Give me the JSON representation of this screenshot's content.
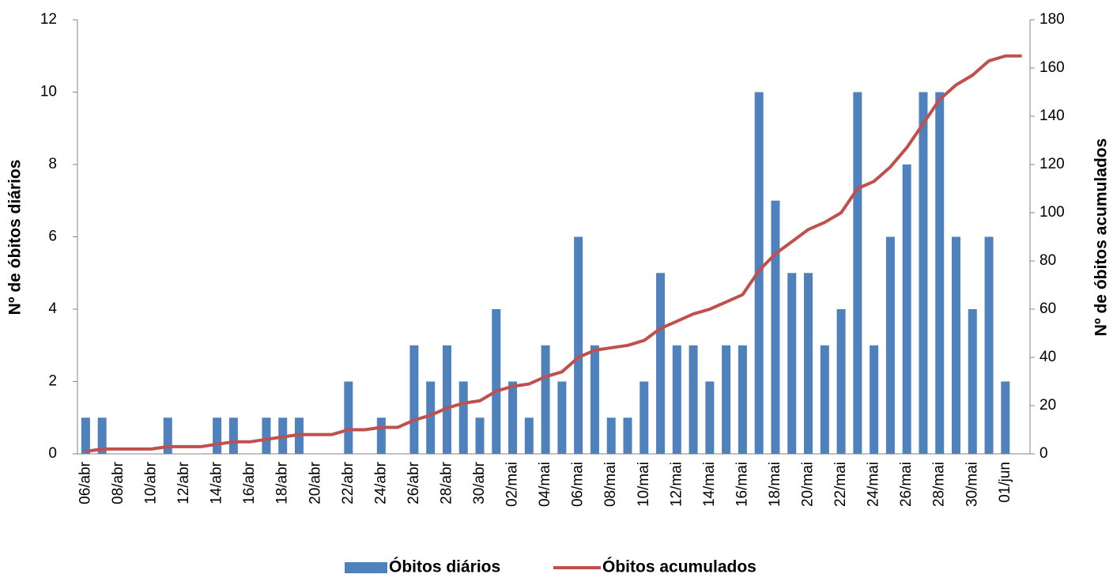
{
  "chart_data": {
    "type": "combo",
    "y_label": "Nº de óbitos diários",
    "y2_label": "Nº de óbitos acumulados",
    "categories": [
      "06/abr",
      null,
      "08/abr",
      null,
      "10/abr",
      null,
      "12/abr",
      null,
      "14/abr",
      null,
      "16/abr",
      null,
      "18/abr",
      null,
      "20/abr",
      null,
      "22/abr",
      null,
      "24/abr",
      null,
      "26/abr",
      null,
      "28/abr",
      null,
      "30/abr",
      null,
      "02/mai",
      null,
      "04/mai",
      null,
      "06/mai",
      null,
      "08/mai",
      null,
      "10/mai",
      null,
      "12/mai",
      null,
      "14/mai",
      null,
      "16/mai",
      null,
      "18/mai",
      null,
      "20/mai",
      null,
      "22/mai",
      null,
      "24/mai",
      null,
      "26/mai",
      null,
      "28/mai",
      null,
      "30/mai",
      null,
      "01/jun",
      null
    ],
    "series": [
      {
        "name": "Óbitos diários",
        "type": "bar",
        "color": "#4f81bd",
        "values": [
          1,
          1,
          0,
          0,
          0,
          1,
          0,
          0,
          1,
          1,
          0,
          1,
          1,
          1,
          0,
          0,
          2,
          0,
          1,
          0,
          3,
          2,
          3,
          2,
          1,
          4,
          2,
          1,
          3,
          2,
          6,
          3,
          1,
          1,
          2,
          5,
          3,
          3,
          2,
          3,
          3,
          10,
          7,
          5,
          5,
          3,
          4,
          10,
          3,
          6,
          8,
          10,
          10,
          6,
          4,
          6,
          2,
          0
        ]
      },
      {
        "name": "Óbitos acumulados",
        "type": "line",
        "axis": "y2",
        "color": "#c0504d",
        "values": [
          1,
          2,
          2,
          2,
          2,
          3,
          3,
          3,
          4,
          5,
          5,
          6,
          7,
          8,
          8,
          8,
          10,
          10,
          11,
          11,
          14,
          16,
          19,
          21,
          22,
          26,
          28,
          29,
          32,
          34,
          40,
          43,
          44,
          45,
          47,
          52,
          55,
          58,
          60,
          63,
          66,
          76,
          83,
          88,
          93,
          96,
          100,
          110,
          113,
          119,
          127,
          137,
          147,
          153,
          157,
          163,
          165,
          165
        ]
      }
    ],
    "ylim": [
      0,
      12
    ],
    "yticks": [
      0,
      2,
      4,
      6,
      8,
      10,
      12
    ],
    "y2lim": [
      0,
      180
    ],
    "y2ticks": [
      0,
      20,
      40,
      60,
      80,
      100,
      120,
      140,
      160,
      180
    ],
    "legend": "bottom"
  }
}
